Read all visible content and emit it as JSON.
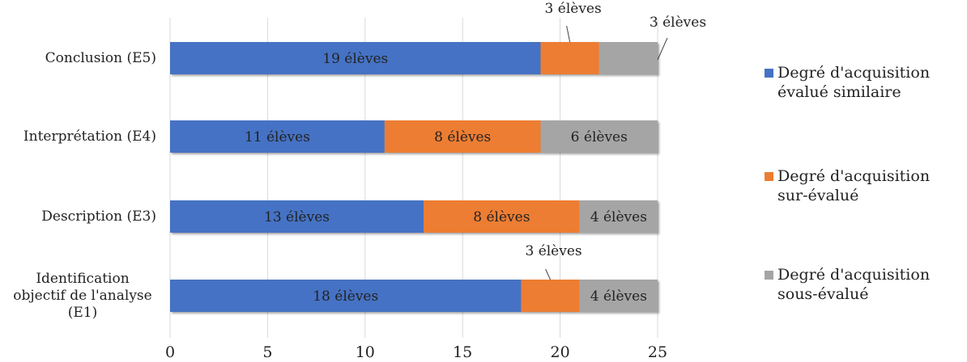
{
  "chart_data": {
    "type": "bar",
    "orientation": "horizontal",
    "stacked": true,
    "categories": [
      "Conclusion (E5)",
      "Interprétation (E4)",
      "Description (E3)",
      "Identification objectif de l'analyse (E1)"
    ],
    "category_label_lines": [
      [
        "Conclusion (E5)"
      ],
      [
        "Interprétation (E4)"
      ],
      [
        "Description (E3)"
      ],
      [
        "Identification",
        "objectif de l'analyse",
        "(E1)"
      ]
    ],
    "series": [
      {
        "name": "Degré d'acquisition évalué similaire",
        "legend_lines": [
          "Degré d'acquisition",
          "évalué similaire"
        ],
        "color": "#4472C4",
        "values": [
          19,
          11,
          13,
          18
        ],
        "labels": [
          "19 élèves",
          "11 élèves",
          "13 élèves",
          "18 élèves"
        ]
      },
      {
        "name": "Degré d'acquisition sur-évalué",
        "legend_lines": [
          "Degré d'acquisition",
          "sur-évalué"
        ],
        "color": "#ED7D31",
        "values": [
          3,
          8,
          8,
          3
        ],
        "labels": [
          "3 élèves",
          "8 élèves",
          "8 élèves",
          "3 élèves"
        ]
      },
      {
        "name": "Degré d'acquisition sous-évalué",
        "legend_lines": [
          "Degré d'acquisition",
          "sous-évalué"
        ],
        "color": "#A5A5A5",
        "values": [
          3,
          6,
          4,
          4
        ],
        "labels": [
          "3 élèves",
          "6 élèves",
          "4 élèves",
          "4 élèves"
        ]
      }
    ],
    "xlim": [
      0,
      25
    ],
    "xticks": [
      0,
      5,
      10,
      15,
      20,
      25
    ],
    "grid": true,
    "legend_position": "right",
    "title": "",
    "xlabel": "",
    "ylabel": ""
  }
}
